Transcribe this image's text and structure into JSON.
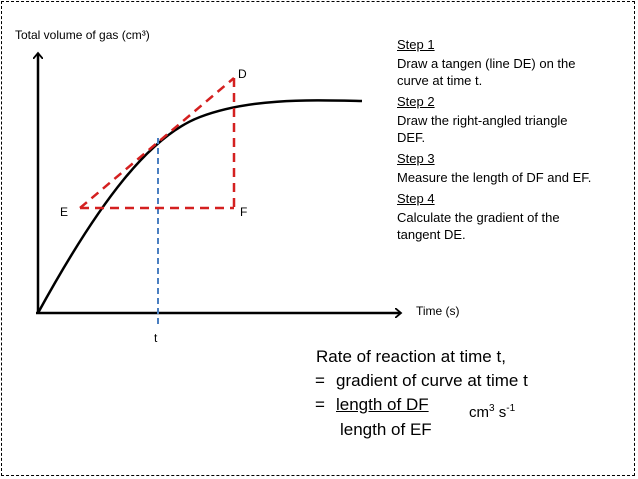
{
  "y_axis_label": "Total volume of gas (cm³)",
  "x_axis_label": "Time (s)",
  "t_label": "t",
  "points": {
    "D": "D",
    "E": "E",
    "F": "F"
  },
  "steps": [
    {
      "heading": "Step 1",
      "text": "Draw a tangen (line DE) on the\ncurve at time t."
    },
    {
      "heading": "Step 2",
      "text": "Draw the right-angled triangle\nDEF."
    },
    {
      "heading": "Step 3",
      "text": "Measure the length of DF and EF."
    },
    {
      "heading": "Step 4",
      "text": "Calculate the gradient of the\ntangent DE."
    }
  ],
  "formula": {
    "line1": "Rate of reaction at time t,",
    "line2_prefix": "=",
    "line2": "gradient of curve at time t",
    "line3_prefix": "=",
    "numerator": "length of DF",
    "denominator": "length of EF",
    "unit_base": "cm",
    "unit_exp1": "3",
    "unit_mid": " s",
    "unit_exp2": "-1"
  },
  "colors": {
    "curve": "#000000",
    "tangent": "#d42020",
    "time_line": "#4a7fc1"
  }
}
